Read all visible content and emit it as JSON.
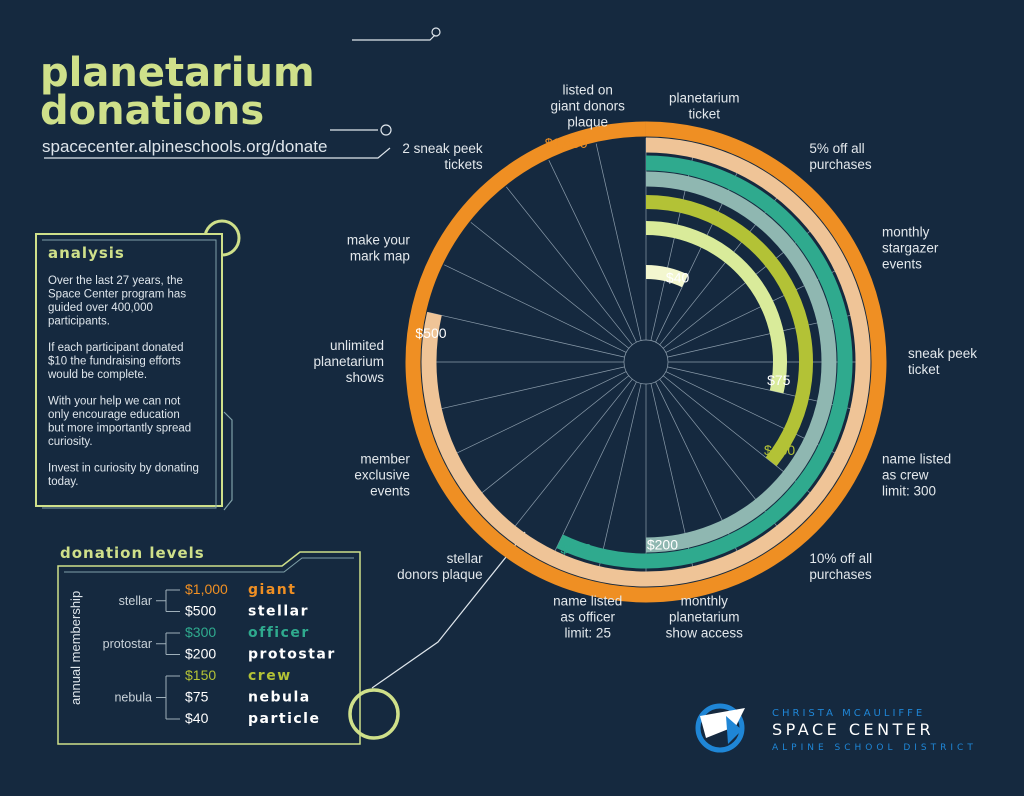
{
  "header": {
    "title_line1": "planetarium",
    "title_line2": "donations",
    "url": "spacecenter.alpineschools.org/donate"
  },
  "analysis": {
    "heading": "analysis",
    "paragraphs": [
      [
        "Over the last 27 years, the",
        "Space Center program has",
        "guided over 400,000",
        "participants."
      ],
      [
        "If each participant donated",
        "$10 the fundraising efforts",
        "would be complete."
      ],
      [
        "With your help we can not",
        "only encourage education",
        "but more importantly spread",
        "curiosity."
      ],
      [
        "Invest in curiosity by donating",
        "today."
      ]
    ]
  },
  "levels": {
    "heading": "donation levels",
    "axis_label": "annual membership",
    "groups": [
      {
        "name": "stellar",
        "rows": [
          {
            "amount": "$1,000",
            "name": "giant",
            "color": "#ef8f23"
          },
          {
            "amount": "$500",
            "name": "stellar",
            "color": "#ffffff"
          }
        ]
      },
      {
        "name": "protostar",
        "rows": [
          {
            "amount": "$300",
            "name": "officer",
            "color": "#2faa8e"
          },
          {
            "amount": "$200",
            "name": "protostar",
            "color": "#ffffff"
          }
        ]
      },
      {
        "name": "nebula",
        "rows": [
          {
            "amount": "$150",
            "name": "crew",
            "color": "#b3c236"
          },
          {
            "amount": "$75",
            "name": "nebula",
            "color": "#ffffff"
          },
          {
            "amount": "$40",
            "name": "particle",
            "color": "#ffffff"
          }
        ]
      }
    ]
  },
  "chart_data": {
    "type": "radial-bar",
    "title": "planetarium donations",
    "benefits": [
      "planetarium ticket",
      "5% off all purchases",
      "monthly stargazer events",
      "sneak peek ticket",
      "name listed as crew limit: 300",
      "10% off all purchases",
      "monthly planetarium show access",
      "name listed as officer limit: 25",
      "stellar donors plaque",
      "member exclusive events",
      "unlimited planetarium shows",
      "make your mark map",
      "2 sneak peek tickets",
      "listed on giant donors plaque"
    ],
    "series": [
      {
        "name": "$1,000",
        "level": "giant",
        "benefits_included": 14,
        "color": "#ef8f23"
      },
      {
        "name": "$500",
        "level": "stellar",
        "benefits_included": 11,
        "color": "#efc497"
      },
      {
        "name": "$300",
        "level": "officer",
        "benefits_included": 8,
        "color": "#2faa8e"
      },
      {
        "name": "$200",
        "level": "protostar",
        "benefits_included": 7,
        "color": "#8fb7b1"
      },
      {
        "name": "$150",
        "level": "crew",
        "benefits_included": 5,
        "color": "#b3c236"
      },
      {
        "name": "$75",
        "level": "nebula",
        "benefits_included": 4,
        "color": "#d9eb9a"
      },
      {
        "name": "$40",
        "level": "particle",
        "benefits_included": 1,
        "color": "#f3f7cf"
      }
    ]
  },
  "logo": {
    "line1": "CHRISTA MCAULIFFE",
    "line2": "SPACE CENTER",
    "line3": "ALPINE SCHOOL DISTRICT"
  }
}
